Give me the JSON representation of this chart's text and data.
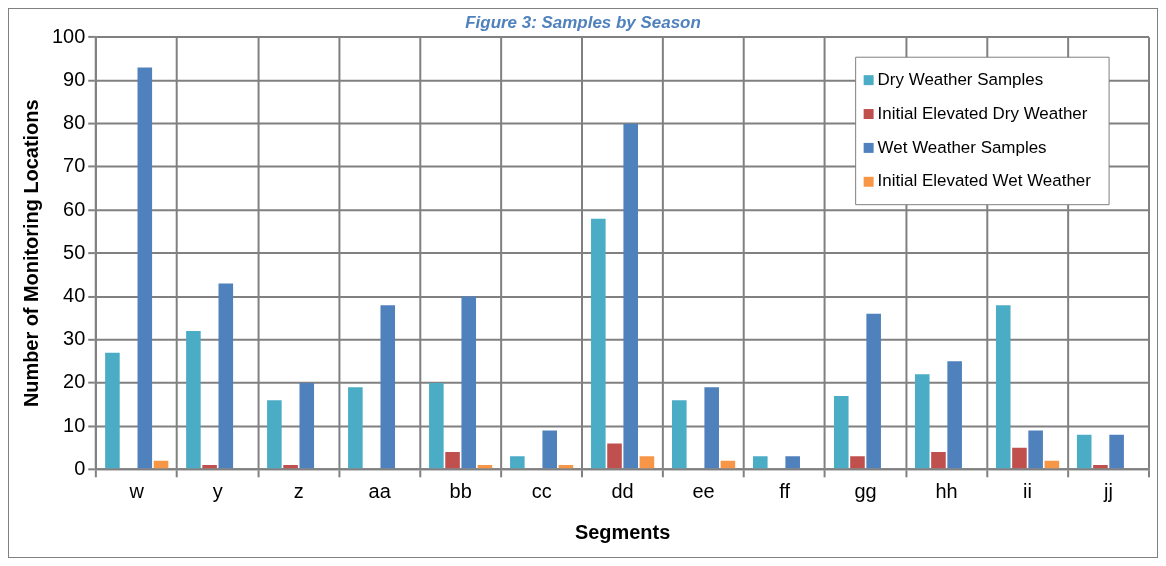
{
  "chart_data": {
    "type": "bar",
    "title": "Figure 3: Samples by Season",
    "xlabel": "Segments",
    "ylabel": "Number of Monitoring Locations",
    "categories": [
      "w",
      "y",
      "z",
      "aa",
      "bb",
      "cc",
      "dd",
      "ee",
      "ff",
      "gg",
      "hh",
      "ii",
      "jj"
    ],
    "series": [
      {
        "name": "Dry Weather Samples",
        "color": "#4bacc6",
        "values": [
          27,
          32,
          16,
          19,
          20,
          3,
          58,
          16,
          3,
          17,
          22,
          38,
          8
        ]
      },
      {
        "name": "Initial Elevated Dry Weather",
        "color": "#c0504d",
        "values": [
          0,
          1,
          1,
          0,
          4,
          0,
          6,
          0,
          0,
          3,
          4,
          5,
          1
        ]
      },
      {
        "name": "Wet Weather Samples",
        "color": "#4f81bd",
        "values": [
          93,
          43,
          20,
          38,
          40,
          9,
          80,
          19,
          3,
          36,
          25,
          9,
          8
        ]
      },
      {
        "name": "Initial Elevated Wet Weather",
        "color": "#f79646",
        "values": [
          2,
          0,
          0,
          0,
          1,
          1,
          3,
          2,
          0,
          0,
          0,
          2,
          0
        ]
      }
    ],
    "ylim": [
      0,
      100
    ],
    "yticks": [
      0,
      10,
      20,
      30,
      40,
      50,
      60,
      70,
      80,
      90,
      100
    ],
    "grid": true,
    "legend": "top right"
  }
}
